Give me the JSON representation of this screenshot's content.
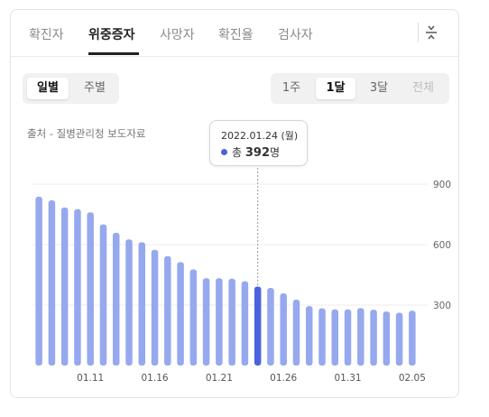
{
  "tabs": [
    {
      "label": "확진자",
      "active": false
    },
    {
      "label": "위중증자",
      "active": true
    },
    {
      "label": "사망자",
      "active": false
    },
    {
      "label": "확진율",
      "active": false
    },
    {
      "label": "검사자",
      "active": false
    }
  ],
  "period_toggle": [
    {
      "label": "일별",
      "active": true
    },
    {
      "label": "주별",
      "active": false
    }
  ],
  "range_toggle": [
    {
      "label": "1주",
      "active": false,
      "disabled": false
    },
    {
      "label": "1달",
      "active": true,
      "disabled": false
    },
    {
      "label": "3달",
      "active": false,
      "disabled": false
    },
    {
      "label": "전체",
      "active": false,
      "disabled": true
    }
  ],
  "source": "출처 - 질병관리청 보도자료",
  "tooltip": {
    "date": "2022.01.24 (월)",
    "label": "총",
    "value": "392",
    "unit": "명"
  },
  "colors": {
    "bar": "#96a9ee",
    "bar_highlight": "#4a63dc",
    "text": "#333333"
  },
  "chart_data": {
    "type": "bar",
    "categories": [
      "01.07",
      "01.08",
      "01.09",
      "01.10",
      "01.11",
      "01.12",
      "01.13",
      "01.14",
      "01.15",
      "01.16",
      "01.17",
      "01.18",
      "01.19",
      "01.20",
      "01.21",
      "01.22",
      "01.23",
      "01.24",
      "01.25",
      "01.26",
      "01.27",
      "01.28",
      "01.29",
      "01.30",
      "01.31",
      "02.01",
      "02.02",
      "02.03",
      "02.04",
      "02.05"
    ],
    "values": [
      838,
      820,
      784,
      776,
      760,
      700,
      659,
      626,
      612,
      574,
      543,
      513,
      477,
      433,
      433,
      431,
      418,
      392,
      385,
      358,
      327,
      295,
      284,
      279,
      279,
      285,
      277,
      268,
      262,
      272
    ],
    "x_tick_labels": [
      "01.11",
      "01.16",
      "01.21",
      "01.26",
      "01.31",
      "02.05"
    ],
    "y_ticks": [
      300,
      600,
      900
    ],
    "ylim": [
      0,
      900
    ],
    "highlight_index": 17,
    "grid": true
  }
}
